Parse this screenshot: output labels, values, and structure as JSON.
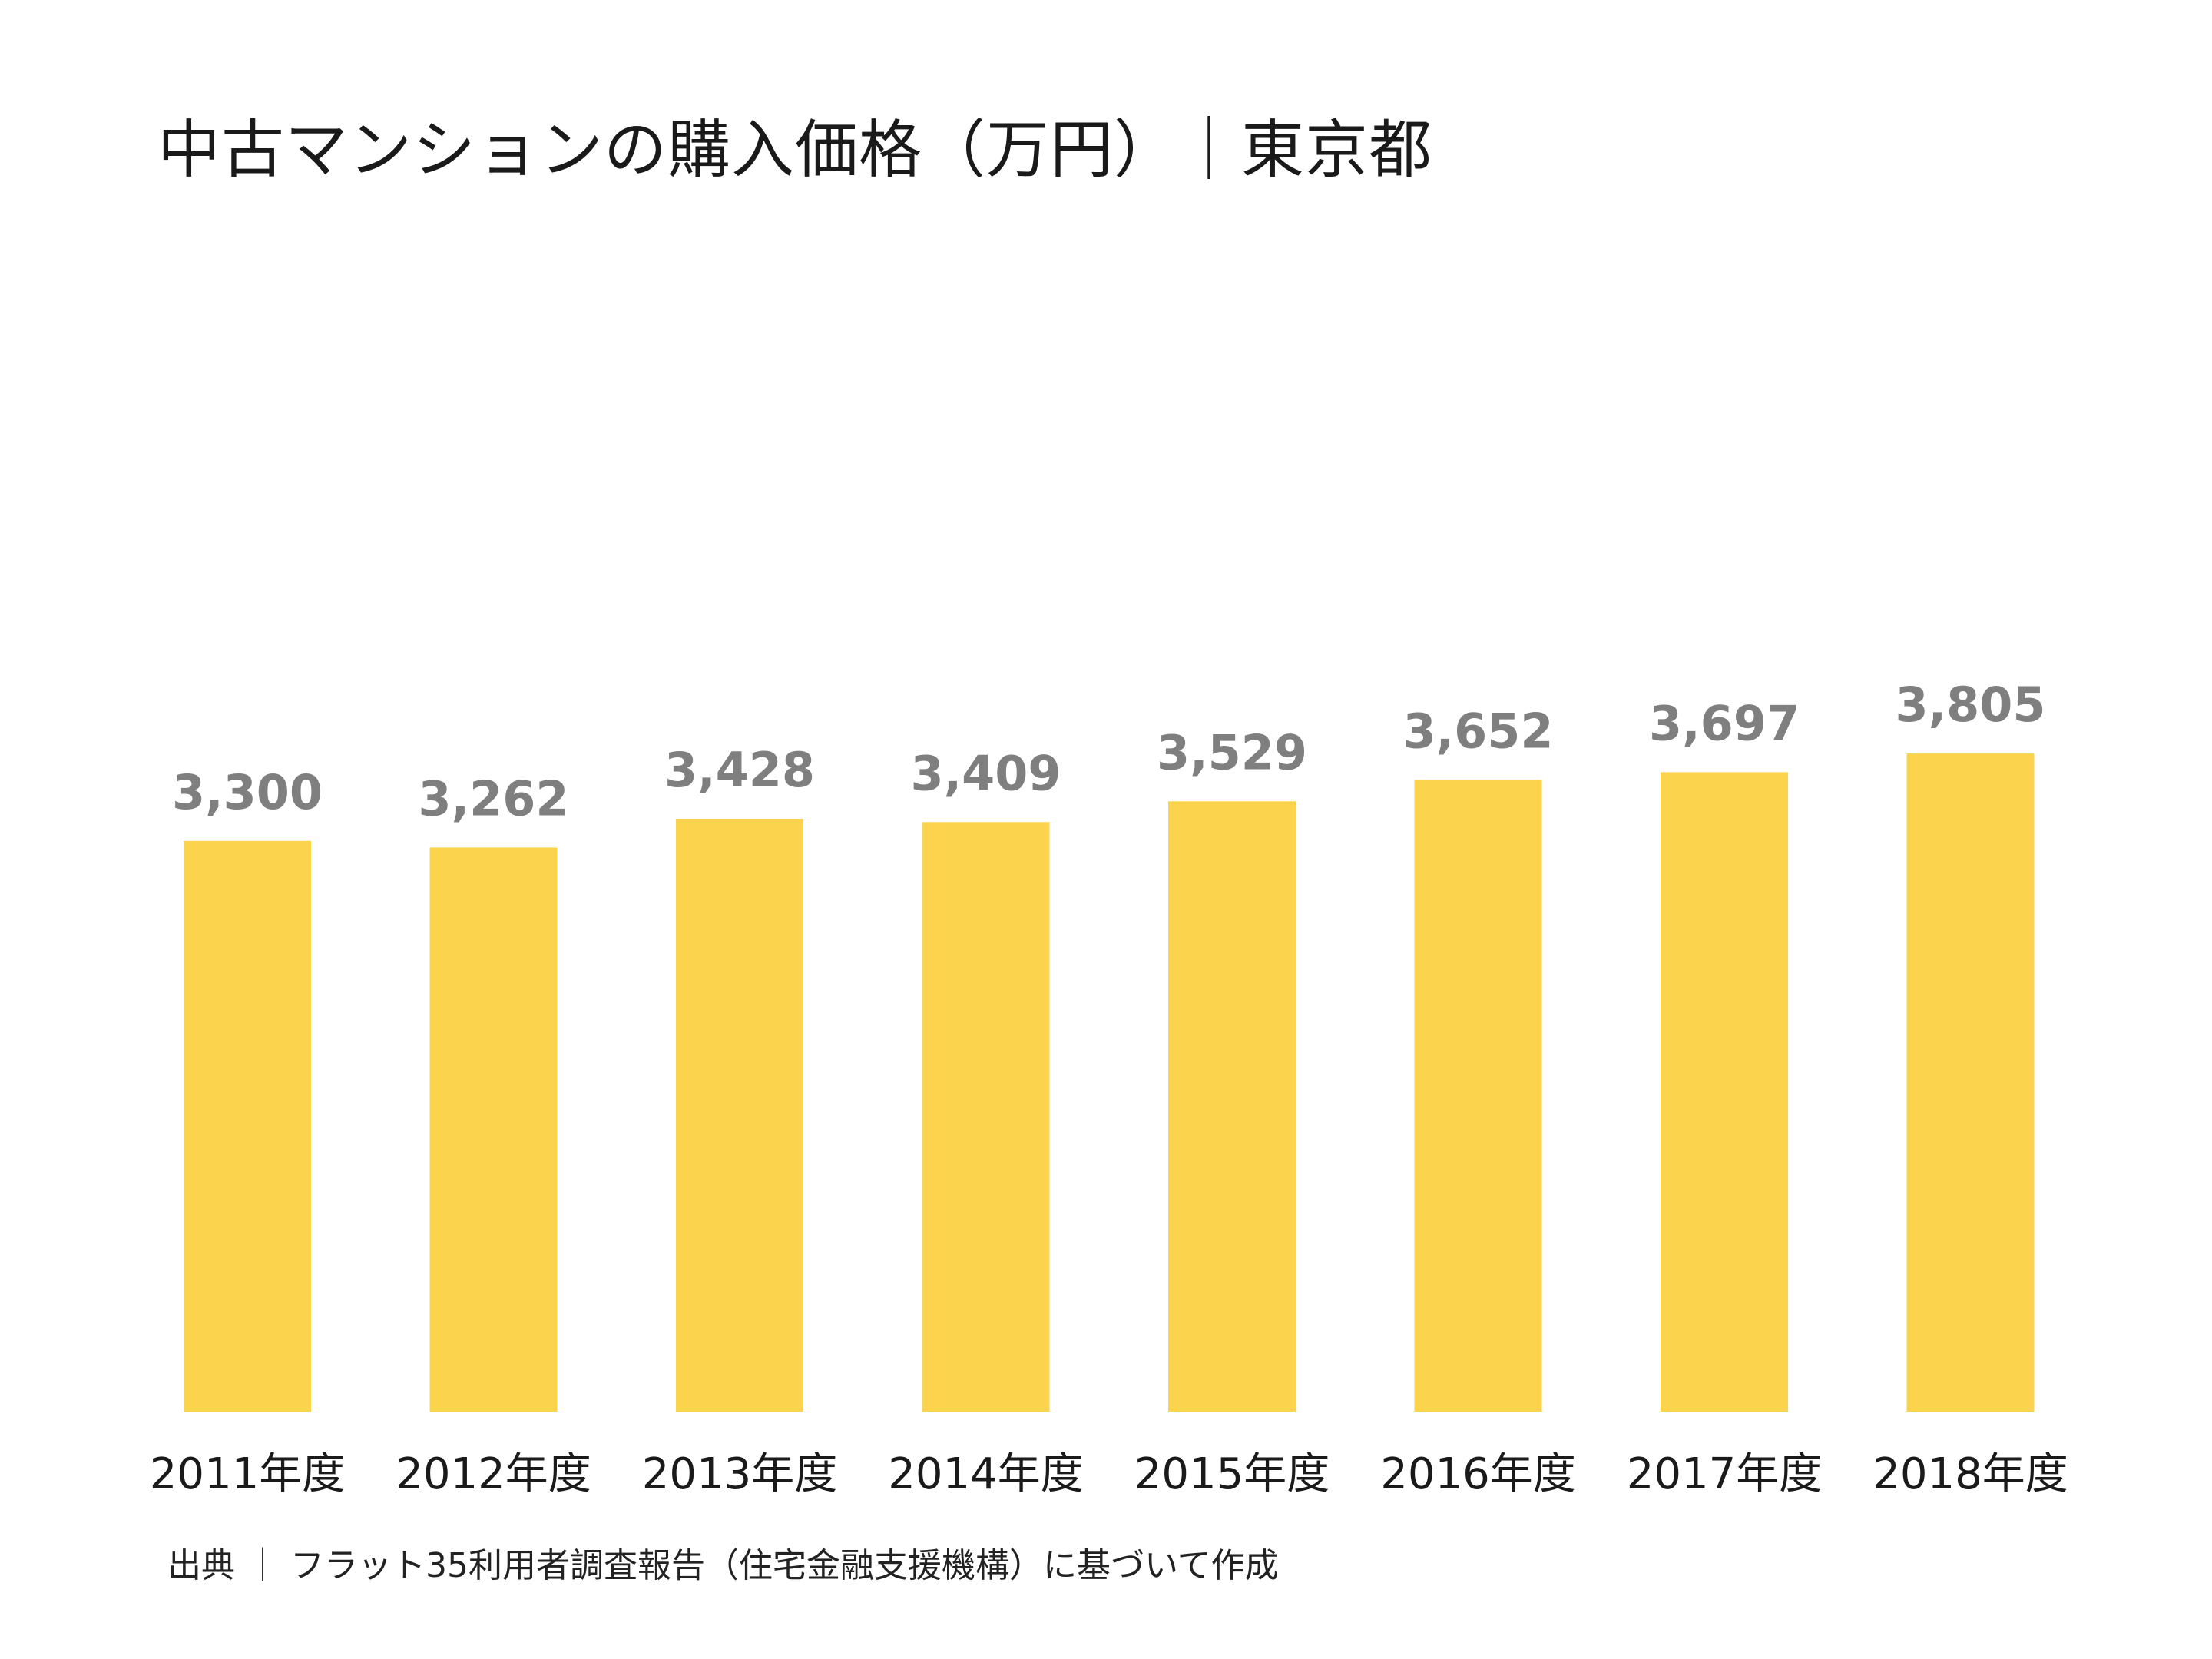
{
  "chart_data": {
    "type": "bar",
    "title": "中古マンションの購入価格（万円）｜東京都",
    "categories": [
      "2011年度",
      "2012年度",
      "2013年度",
      "2014年度",
      "2015年度",
      "2016年度",
      "2017年度",
      "2018年度"
    ],
    "values": [
      3300,
      3262,
      3428,
      3409,
      3529,
      3652,
      3697,
      3805
    ],
    "data_labels": [
      "3,300",
      "3,262",
      "3,428",
      "3,409",
      "3,529",
      "3,652",
      "3,697",
      "3,805"
    ],
    "ylim": [
      0,
      4000
    ],
    "grid": false,
    "bar_color": "#FCD34D",
    "label_color": "#7F7F7F"
  },
  "source": "出典 ｜ フラット35利用者調査報告（住宅金融支援機構）に基づいて作成"
}
